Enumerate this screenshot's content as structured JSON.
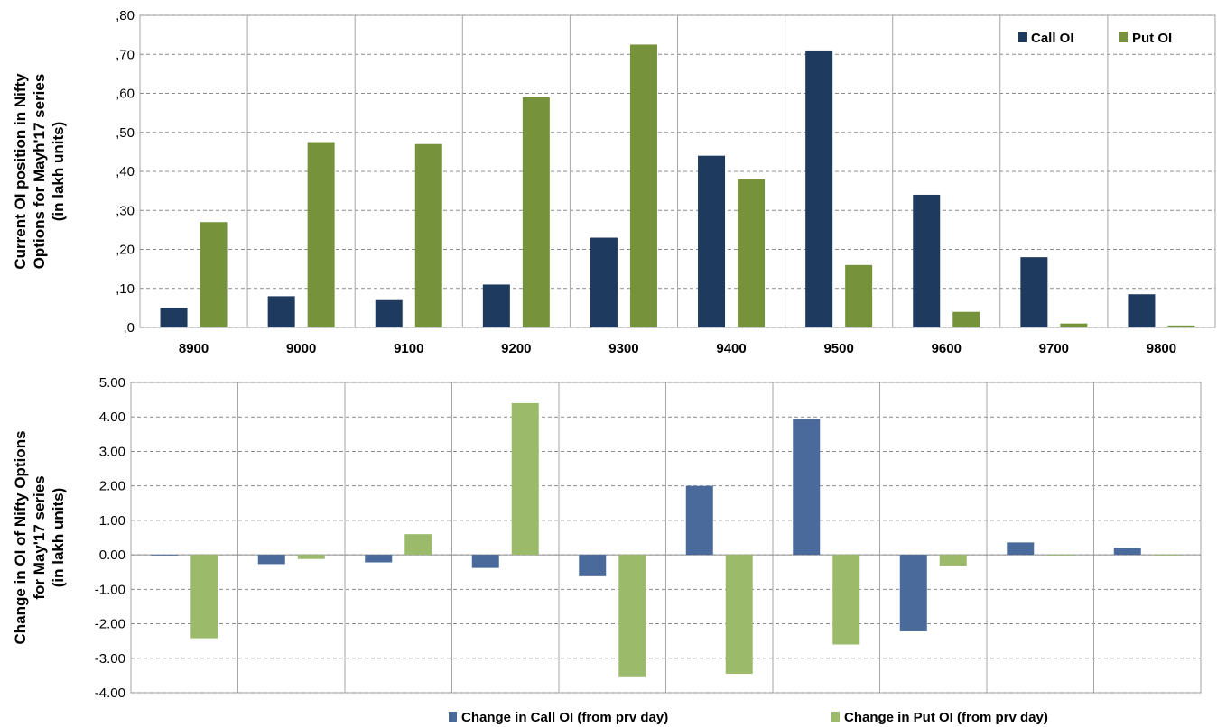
{
  "chart_data": [
    {
      "type": "bar",
      "categories": [
        "8900",
        "9000",
        "9100",
        "9200",
        "9300",
        "9400",
        "9500",
        "9600",
        "9700",
        "9800"
      ],
      "series": [
        {
          "name": "Call OI",
          "values": [
            5,
            8,
            7,
            11,
            23,
            44,
            71,
            34,
            18,
            8.5
          ],
          "color": "#1f3a5f"
        },
        {
          "name": "Put OI",
          "values": [
            27,
            47.5,
            47,
            59,
            72.5,
            38,
            16,
            4,
            1,
            0.5
          ],
          "color": "#76933c"
        }
      ],
      "ylabel_lines": [
        "Current OI position in Nifty",
        "Options for Mayh'17  series",
        "(in lakh units)"
      ],
      "ytick_labels": [
        ",0",
        ",10",
        ",20",
        ",30",
        ",40",
        ",50",
        ",60",
        ",70",
        ",80"
      ],
      "ylim": [
        0,
        80
      ],
      "grid": "horizontal dashed, vertical solid",
      "legend_position": "top-right"
    },
    {
      "type": "bar",
      "categories": [
        "8900",
        "9000",
        "9100",
        "9200",
        "9300",
        "9400",
        "9500",
        "9600",
        "9700",
        "9800"
      ],
      "series": [
        {
          "name": "Change in Call OI (from prv day)",
          "values": [
            -0.02,
            -0.27,
            -0.22,
            -0.38,
            -0.62,
            2.0,
            3.95,
            -2.22,
            0.36,
            0.2
          ],
          "color": "#4a6a9b"
        },
        {
          "name": "Change in Put OI (from prv day)",
          "values": [
            -2.42,
            -0.12,
            0.6,
            4.4,
            -3.55,
            -3.45,
            -2.6,
            -0.32,
            -0.02,
            -0.02
          ],
          "color": "#9bbb6a"
        }
      ],
      "ylabel_lines": [
        "Change in OI of Nifty Options",
        "for May'17  series",
        "(in lakh units)"
      ],
      "ytick_labels": [
        "-4.00",
        "-3.00",
        "-2.00",
        "-1.00",
        "0.00",
        "1.00",
        "2.00",
        "3.00",
        "4.00",
        "5.00"
      ],
      "ylim": [
        -4,
        5
      ],
      "grid": "horizontal dashed, vertical solid",
      "legend_position": "bottom"
    }
  ]
}
